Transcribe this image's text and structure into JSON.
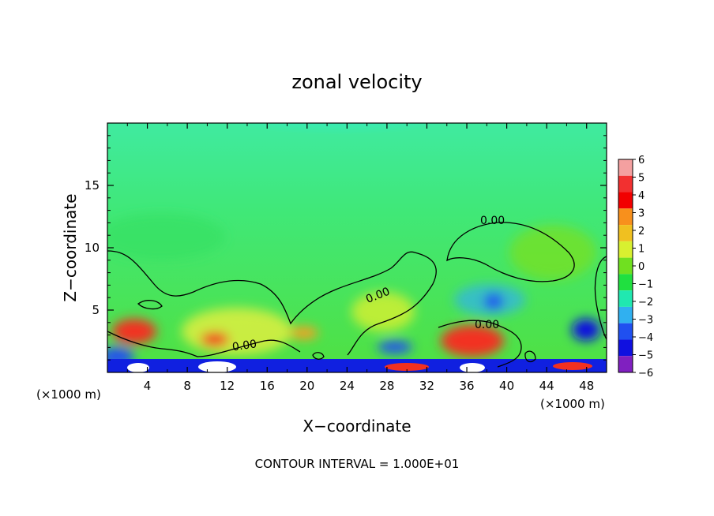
{
  "chart_data": {
    "type": "heatmap",
    "title": "zonal velocity",
    "xlabel": "X−coordinate",
    "ylabel": "Z−coordinate",
    "x_unit_left": "(×1000 m)",
    "x_unit_right": "(×1000 m)",
    "footer": "CONTOUR INTERVAL = 1.000E+01",
    "xlim": [
      0,
      50
    ],
    "ylim": [
      0,
      20
    ],
    "x_ticks": [
      4,
      8,
      12,
      16,
      20,
      24,
      28,
      32,
      36,
      40,
      44,
      48
    ],
    "x_tick_labels": [
      "4",
      "8",
      "12",
      "16",
      "20",
      "24",
      "28",
      "32",
      "36",
      "40",
      "44",
      "48"
    ],
    "y_ticks": [
      5,
      10,
      15
    ],
    "y_tick_labels": [
      "5",
      "10",
      "15"
    ],
    "contour_label": "0.00",
    "colorbar": {
      "levels": [
        6,
        5,
        4,
        3,
        2,
        1,
        0,
        -1,
        -2,
        -3,
        -4,
        -5,
        -6
      ],
      "labels": [
        "6",
        "5",
        "4",
        "3",
        "2",
        "1",
        "0",
        "−1",
        "−2",
        "−3",
        "−4",
        "−5",
        "−6"
      ],
      "colors": [
        "#f4a0a0",
        "#f23030",
        "#f20000",
        "#f8901c",
        "#f0c020",
        "#d8f030",
        "#70e020",
        "#20e040",
        "#20e8b0",
        "#30b0f0",
        "#2050f0",
        "#1010e0",
        "#8020c0"
      ]
    }
  }
}
